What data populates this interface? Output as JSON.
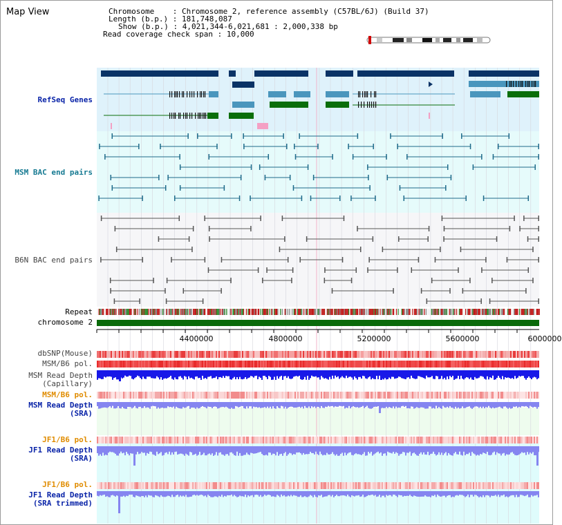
{
  "view_title": "Map View",
  "info": {
    "chromosome_label": "Chromosome",
    "chromosome_value": "Chromosome 2, reference assembly (C57BL/6J) (Build 37)",
    "length_label": "Length (b.p.)",
    "length_value": "181,748,087",
    "show_label": "Show (b.p.)",
    "show_value": "4,021,344-6,021,681 : 2,000,338 bp",
    "coverage_label": "Read coverage check span",
    "coverage_value": "10,000"
  },
  "tracks": {
    "refseq": "RefSeq Genes",
    "msm_bac": "MSM BAC end pairs",
    "b6n_bac": "B6N BAC end pairs",
    "repeat": "Repeat",
    "chromosome": "chromosome 2",
    "dbsnp": "dbSNP(Mouse)",
    "msm_b6_pol_1": "MSM/B6 pol.",
    "msm_depth_cap_1": "MSM Read Depth",
    "msm_depth_cap_2": "(Capillary)",
    "msm_b6_pol_2": "MSM/B6 pol.",
    "msm_depth_sra_1": "MSM Read Depth",
    "msm_depth_sra_2": "(SRA)",
    "jf1_b6_pol_1": "JF1/B6 pol.",
    "jf1_depth_sra_1": "JF1 Read Depth",
    "jf1_depth_sra_2": "(SRA)",
    "jf1_b6_pol_2": "JF1/B6 pol.",
    "jf1_depth_trim_1": "JF1 Read Depth",
    "jf1_depth_trim_2": "(SRA trimmed)"
  },
  "axis_ticks": [
    "4400000",
    "4800000",
    "5200000",
    "5600000",
    "6000000"
  ],
  "colors": {
    "refseq_bg": "#dff2fb",
    "msm_bg": "#e6fbfb",
    "gene_navy": "#0a3366",
    "gene_blue": "#4a96bd",
    "gene_green": "#0a6e0a",
    "chromosome_bar": "#0a6a0a",
    "pol_red": "#ef4a4a",
    "depth_blue": "#1818e8",
    "depth_sra": "#8585f0",
    "lower_bg": "#dffcfc"
  }
}
